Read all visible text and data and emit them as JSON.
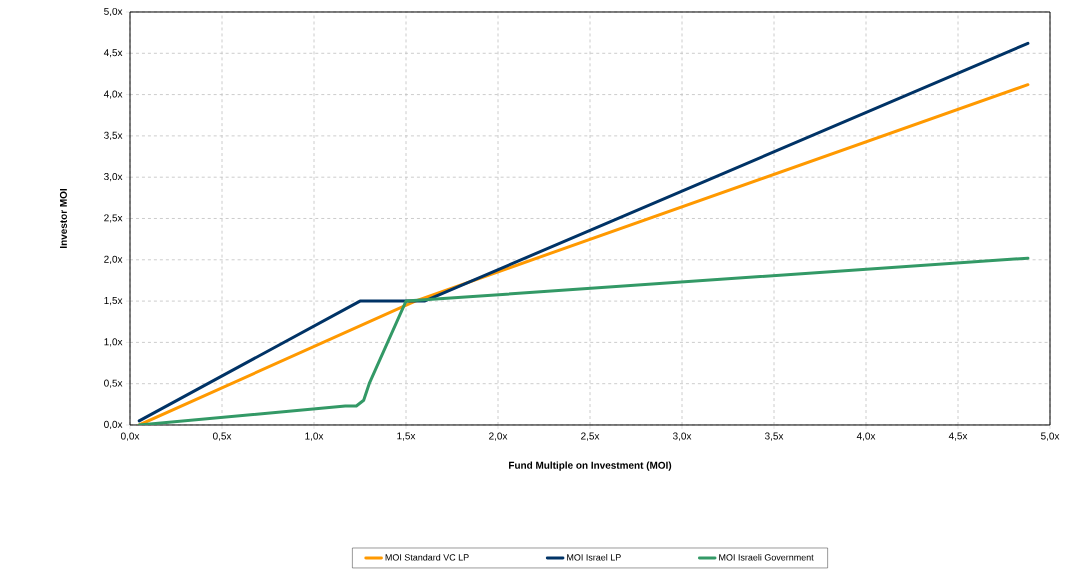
{
  "chart_data": {
    "type": "line",
    "xlabel": "Fund Multiple on Investment  (MOI)",
    "ylabel": "Investor MOI",
    "xlim": [
      0,
      5
    ],
    "ylim": [
      0,
      5
    ],
    "xticks": [
      {
        "value": 0,
        "label": "0,0x"
      },
      {
        "value": 0.5,
        "label": "0,5x"
      },
      {
        "value": 1,
        "label": "1,0x"
      },
      {
        "value": 1.5,
        "label": "1,5x"
      },
      {
        "value": 2,
        "label": "2,0x"
      },
      {
        "value": 2.5,
        "label": "2,5x"
      },
      {
        "value": 3,
        "label": "3,0x"
      },
      {
        "value": 3.5,
        "label": "3,5x"
      },
      {
        "value": 4,
        "label": "4,0x"
      },
      {
        "value": 4.5,
        "label": "4,5x"
      },
      {
        "value": 5,
        "label": "5,0x"
      }
    ],
    "yticks": [
      {
        "value": 0,
        "label": "0,0x"
      },
      {
        "value": 0.5,
        "label": "0,5x"
      },
      {
        "value": 1,
        "label": "1,0x"
      },
      {
        "value": 1.5,
        "label": "1,5x"
      },
      {
        "value": 2,
        "label": "2,0x"
      },
      {
        "value": 2.5,
        "label": "2,5x"
      },
      {
        "value": 3,
        "label": "3,0x"
      },
      {
        "value": 3.5,
        "label": "3,5x"
      },
      {
        "value": 4,
        "label": "4,0x"
      },
      {
        "value": 4.5,
        "label": "4,5x"
      },
      {
        "value": 5,
        "label": "5,0x"
      }
    ],
    "grid": true,
    "legend": "bottom",
    "marker": "none",
    "line_style": "solid",
    "series": [
      {
        "name": "MOI Standard VC LP",
        "color": "#ff9900",
        "x": [
          0.05,
          1.55,
          4.88
        ],
        "values": [
          0.0,
          1.5,
          4.12
        ]
      },
      {
        "name": "MOI Israel LP",
        "color": "#003366",
        "x": [
          0.05,
          1.25,
          1.3,
          1.6,
          4.88
        ],
        "values": [
          0.05,
          1.5,
          1.5,
          1.5,
          4.62
        ]
      },
      {
        "name": "MOI Israeli Government",
        "color": "#339966",
        "x": [
          0.05,
          1.17,
          1.23,
          1.27,
          1.3,
          1.5,
          4.88
        ],
        "values": [
          0.0,
          0.23,
          0.23,
          0.3,
          0.5,
          1.5,
          2.02
        ]
      }
    ]
  }
}
